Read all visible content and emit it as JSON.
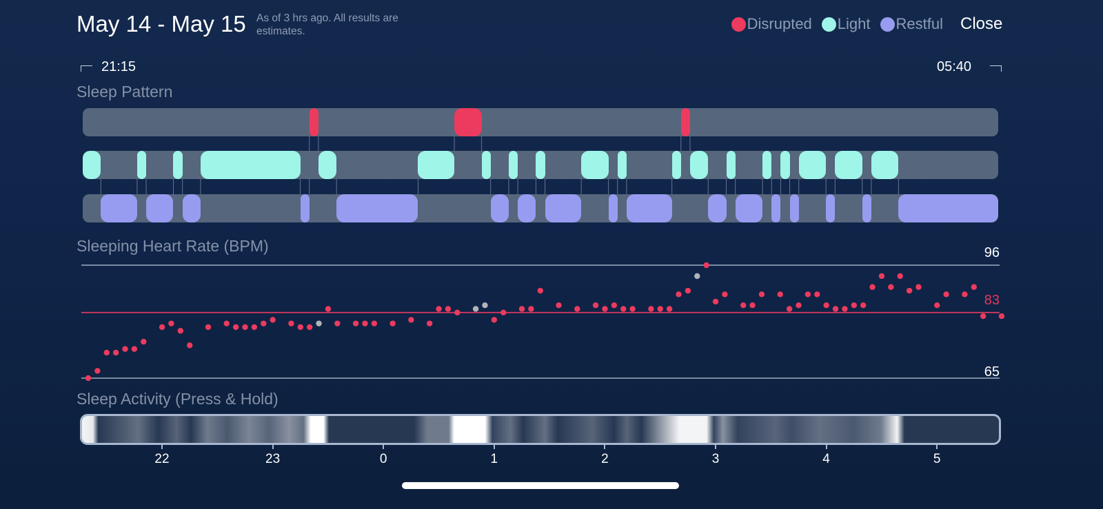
{
  "header": {
    "title": "May 14 - May 15",
    "subtitle": "As of 3 hrs ago. All results are estimates.",
    "close_label": "Close"
  },
  "legend": [
    {
      "label": "Disrupted",
      "color": "#ec3b5e"
    },
    {
      "label": "Light",
      "color": "#9ef5e8"
    },
    {
      "label": "Restful",
      "color": "#979cf0"
    }
  ],
  "range": {
    "start": "21:15",
    "end": "05:40"
  },
  "sleep_pattern": {
    "title": "Sleep Pattern",
    "track_color": "#56667c",
    "segments": [
      {
        "stage": "Light",
        "start": "21:15",
        "end": "21:25"
      },
      {
        "stage": "Restful",
        "start": "21:25",
        "end": "21:45"
      },
      {
        "stage": "Light",
        "start": "21:45",
        "end": "21:50"
      },
      {
        "stage": "Restful",
        "start": "21:50",
        "end": "22:05"
      },
      {
        "stage": "Light",
        "start": "22:05",
        "end": "22:10"
      },
      {
        "stage": "Restful",
        "start": "22:10",
        "end": "22:20"
      },
      {
        "stage": "Light",
        "start": "22:20",
        "end": "23:15"
      },
      {
        "stage": "Restful",
        "start": "23:15",
        "end": "23:20"
      },
      {
        "stage": "Disrupted",
        "start": "23:20",
        "end": "23:25"
      },
      {
        "stage": "Light",
        "start": "23:25",
        "end": "23:35"
      },
      {
        "stage": "Restful",
        "start": "23:35",
        "end": "00:20"
      },
      {
        "stage": "Light",
        "start": "00:20",
        "end": "00:40"
      },
      {
        "stage": "Disrupted",
        "start": "00:40",
        "end": "00:55"
      },
      {
        "stage": "Light",
        "start": "00:55",
        "end": "01:00"
      },
      {
        "stage": "Restful",
        "start": "01:00",
        "end": "01:10"
      },
      {
        "stage": "Light",
        "start": "01:10",
        "end": "01:15"
      },
      {
        "stage": "Restful",
        "start": "01:15",
        "end": "01:25"
      },
      {
        "stage": "Light",
        "start": "01:25",
        "end": "01:30"
      },
      {
        "stage": "Restful",
        "start": "01:30",
        "end": "01:50"
      },
      {
        "stage": "Light",
        "start": "01:50",
        "end": "02:05"
      },
      {
        "stage": "Restful",
        "start": "02:05",
        "end": "02:10"
      },
      {
        "stage": "Light",
        "start": "02:10",
        "end": "02:15"
      },
      {
        "stage": "Restful",
        "start": "02:15",
        "end": "02:40"
      },
      {
        "stage": "Light",
        "start": "02:40",
        "end": "02:45"
      },
      {
        "stage": "Disrupted",
        "start": "02:45",
        "end": "02:50"
      },
      {
        "stage": "Light",
        "start": "02:50",
        "end": "03:00"
      },
      {
        "stage": "Restful",
        "start": "03:00",
        "end": "03:10"
      },
      {
        "stage": "Light",
        "start": "03:10",
        "end": "03:15"
      },
      {
        "stage": "Restful",
        "start": "03:15",
        "end": "03:30"
      },
      {
        "stage": "Light",
        "start": "03:30",
        "end": "03:35"
      },
      {
        "stage": "Restful",
        "start": "03:35",
        "end": "03:40"
      },
      {
        "stage": "Light",
        "start": "03:40",
        "end": "03:45"
      },
      {
        "stage": "Restful",
        "start": "03:45",
        "end": "03:50"
      },
      {
        "stage": "Light",
        "start": "03:50",
        "end": "04:05"
      },
      {
        "stage": "Restful",
        "start": "04:05",
        "end": "04:10"
      },
      {
        "stage": "Light",
        "start": "04:10",
        "end": "04:25"
      },
      {
        "stage": "Restful",
        "start": "04:25",
        "end": "04:30"
      },
      {
        "stage": "Light",
        "start": "04:30",
        "end": "04:45"
      },
      {
        "stage": "Restful",
        "start": "04:45",
        "end": "05:40"
      }
    ]
  },
  "chart_data": {
    "type": "scatter",
    "title": "Sleeping Heart Rate (BPM)",
    "ylim": [
      65,
      96
    ],
    "reference_lines": [
      {
        "value": 96,
        "label": "96",
        "color": "#8a9ab0"
      },
      {
        "value": 83,
        "label": "83",
        "color": "#e0395e"
      },
      {
        "value": 65,
        "label": "65",
        "color": "#8a9ab0"
      }
    ],
    "x_ticks": [
      "22",
      "23",
      "0",
      "1",
      "2",
      "3",
      "4",
      "5"
    ],
    "point_color": "#ec3b5e",
    "muted_color": "#b0b4ba",
    "points": [
      {
        "t": "21:20",
        "bpm": 65
      },
      {
        "t": "21:25",
        "bpm": 67
      },
      {
        "t": "21:30",
        "bpm": 72
      },
      {
        "t": "21:35",
        "bpm": 72
      },
      {
        "t": "21:40",
        "bpm": 73
      },
      {
        "t": "21:45",
        "bpm": 73
      },
      {
        "t": "21:50",
        "bpm": 75
      },
      {
        "t": "22:00",
        "bpm": 79
      },
      {
        "t": "22:05",
        "bpm": 80
      },
      {
        "t": "22:10",
        "bpm": 78
      },
      {
        "t": "22:15",
        "bpm": 74
      },
      {
        "t": "22:25",
        "bpm": 79
      },
      {
        "t": "22:35",
        "bpm": 80
      },
      {
        "t": "22:40",
        "bpm": 79
      },
      {
        "t": "22:45",
        "bpm": 79
      },
      {
        "t": "22:50",
        "bpm": 79
      },
      {
        "t": "22:55",
        "bpm": 80
      },
      {
        "t": "23:00",
        "bpm": 81
      },
      {
        "t": "23:10",
        "bpm": 80
      },
      {
        "t": "23:15",
        "bpm": 79
      },
      {
        "t": "23:20",
        "bpm": 79
      },
      {
        "t": "23:25",
        "bpm": 80,
        "muted": true
      },
      {
        "t": "23:30",
        "bpm": 84
      },
      {
        "t": "23:35",
        "bpm": 80
      },
      {
        "t": "23:45",
        "bpm": 80
      },
      {
        "t": "23:50",
        "bpm": 80
      },
      {
        "t": "23:55",
        "bpm": 80
      },
      {
        "t": "00:05",
        "bpm": 80
      },
      {
        "t": "00:15",
        "bpm": 81
      },
      {
        "t": "00:25",
        "bpm": 80
      },
      {
        "t": "00:30",
        "bpm": 84
      },
      {
        "t": "00:35",
        "bpm": 84
      },
      {
        "t": "00:40",
        "bpm": 83
      },
      {
        "t": "00:50",
        "bpm": 84,
        "muted": true
      },
      {
        "t": "00:55",
        "bpm": 85,
        "muted": true
      },
      {
        "t": "01:00",
        "bpm": 81
      },
      {
        "t": "01:05",
        "bpm": 83
      },
      {
        "t": "01:15",
        "bpm": 84
      },
      {
        "t": "01:20",
        "bpm": 84
      },
      {
        "t": "01:25",
        "bpm": 89
      },
      {
        "t": "01:35",
        "bpm": 85
      },
      {
        "t": "01:45",
        "bpm": 84
      },
      {
        "t": "01:55",
        "bpm": 85
      },
      {
        "t": "02:00",
        "bpm": 84
      },
      {
        "t": "02:05",
        "bpm": 85
      },
      {
        "t": "02:10",
        "bpm": 84
      },
      {
        "t": "02:15",
        "bpm": 84
      },
      {
        "t": "02:25",
        "bpm": 84
      },
      {
        "t": "02:30",
        "bpm": 84
      },
      {
        "t": "02:35",
        "bpm": 84
      },
      {
        "t": "02:40",
        "bpm": 88
      },
      {
        "t": "02:45",
        "bpm": 89
      },
      {
        "t": "02:50",
        "bpm": 93,
        "muted": true
      },
      {
        "t": "02:55",
        "bpm": 96
      },
      {
        "t": "03:00",
        "bpm": 86
      },
      {
        "t": "03:05",
        "bpm": 88
      },
      {
        "t": "03:15",
        "bpm": 85
      },
      {
        "t": "03:20",
        "bpm": 85
      },
      {
        "t": "03:25",
        "bpm": 88
      },
      {
        "t": "03:35",
        "bpm": 88
      },
      {
        "t": "03:40",
        "bpm": 84
      },
      {
        "t": "03:45",
        "bpm": 85
      },
      {
        "t": "03:50",
        "bpm": 88
      },
      {
        "t": "03:55",
        "bpm": 88
      },
      {
        "t": "04:00",
        "bpm": 85
      },
      {
        "t": "04:05",
        "bpm": 84
      },
      {
        "t": "04:10",
        "bpm": 84
      },
      {
        "t": "04:15",
        "bpm": 85
      },
      {
        "t": "04:20",
        "bpm": 85
      },
      {
        "t": "04:25",
        "bpm": 90
      },
      {
        "t": "04:30",
        "bpm": 93
      },
      {
        "t": "04:35",
        "bpm": 90
      },
      {
        "t": "04:40",
        "bpm": 93
      },
      {
        "t": "04:45",
        "bpm": 89
      },
      {
        "t": "04:50",
        "bpm": 90
      },
      {
        "t": "05:00",
        "bpm": 85
      },
      {
        "t": "05:05",
        "bpm": 88
      },
      {
        "t": "05:15",
        "bpm": 88
      },
      {
        "t": "05:20",
        "bpm": 90
      },
      {
        "t": "05:25",
        "bpm": 82
      },
      {
        "t": "05:35",
        "bpm": 82
      }
    ]
  },
  "sleep_activity": {
    "title": "Sleep Activity (Press & Hold)",
    "levels": [
      {
        "t": "21:15",
        "v": 0.95
      },
      {
        "t": "21:21",
        "v": 0.9
      },
      {
        "t": "21:24",
        "v": 0.1
      },
      {
        "t": "21:46",
        "v": 0.35
      },
      {
        "t": "21:57",
        "v": 0.1
      },
      {
        "t": "22:07",
        "v": 0.3
      },
      {
        "t": "22:15",
        "v": 0.1
      },
      {
        "t": "22:24",
        "v": 0.4
      },
      {
        "t": "22:35",
        "v": 0.25
      },
      {
        "t": "22:47",
        "v": 0.45
      },
      {
        "t": "22:58",
        "v": 0.3
      },
      {
        "t": "23:09",
        "v": 0.5
      },
      {
        "t": "23:17",
        "v": 0.35
      },
      {
        "t": "23:21",
        "v": 1.0
      },
      {
        "t": "23:28",
        "v": 1.0
      },
      {
        "t": "23:31",
        "v": 0.1
      },
      {
        "t": "00:18",
        "v": 0.1
      },
      {
        "t": "00:25",
        "v": 0.4
      },
      {
        "t": "00:37",
        "v": 0.4
      },
      {
        "t": "00:40",
        "v": 1.0
      },
      {
        "t": "00:57",
        "v": 1.0
      },
      {
        "t": "01:01",
        "v": 0.15
      },
      {
        "t": "01:11",
        "v": 0.35
      },
      {
        "t": "01:18",
        "v": 0.1
      },
      {
        "t": "01:30",
        "v": 0.35
      },
      {
        "t": "01:37",
        "v": 0.1
      },
      {
        "t": "01:56",
        "v": 0.3
      },
      {
        "t": "02:08",
        "v": 0.1
      },
      {
        "t": "02:15",
        "v": 0.3
      },
      {
        "t": "02:23",
        "v": 0.1
      },
      {
        "t": "02:44",
        "v": 0.95
      },
      {
        "t": "02:59",
        "v": 0.95
      },
      {
        "t": "03:03",
        "v": 0.15
      },
      {
        "t": "03:08",
        "v": 0.5
      },
      {
        "t": "03:16",
        "v": 0.15
      },
      {
        "t": "03:37",
        "v": 0.3
      },
      {
        "t": "03:46",
        "v": 0.2
      },
      {
        "t": "04:01",
        "v": 0.35
      },
      {
        "t": "04:20",
        "v": 0.25
      },
      {
        "t": "04:35",
        "v": 0.4
      },
      {
        "t": "04:44",
        "v": 0.95
      },
      {
        "t": "04:48",
        "v": 0.1
      },
      {
        "t": "05:40",
        "v": 0.1
      }
    ]
  }
}
